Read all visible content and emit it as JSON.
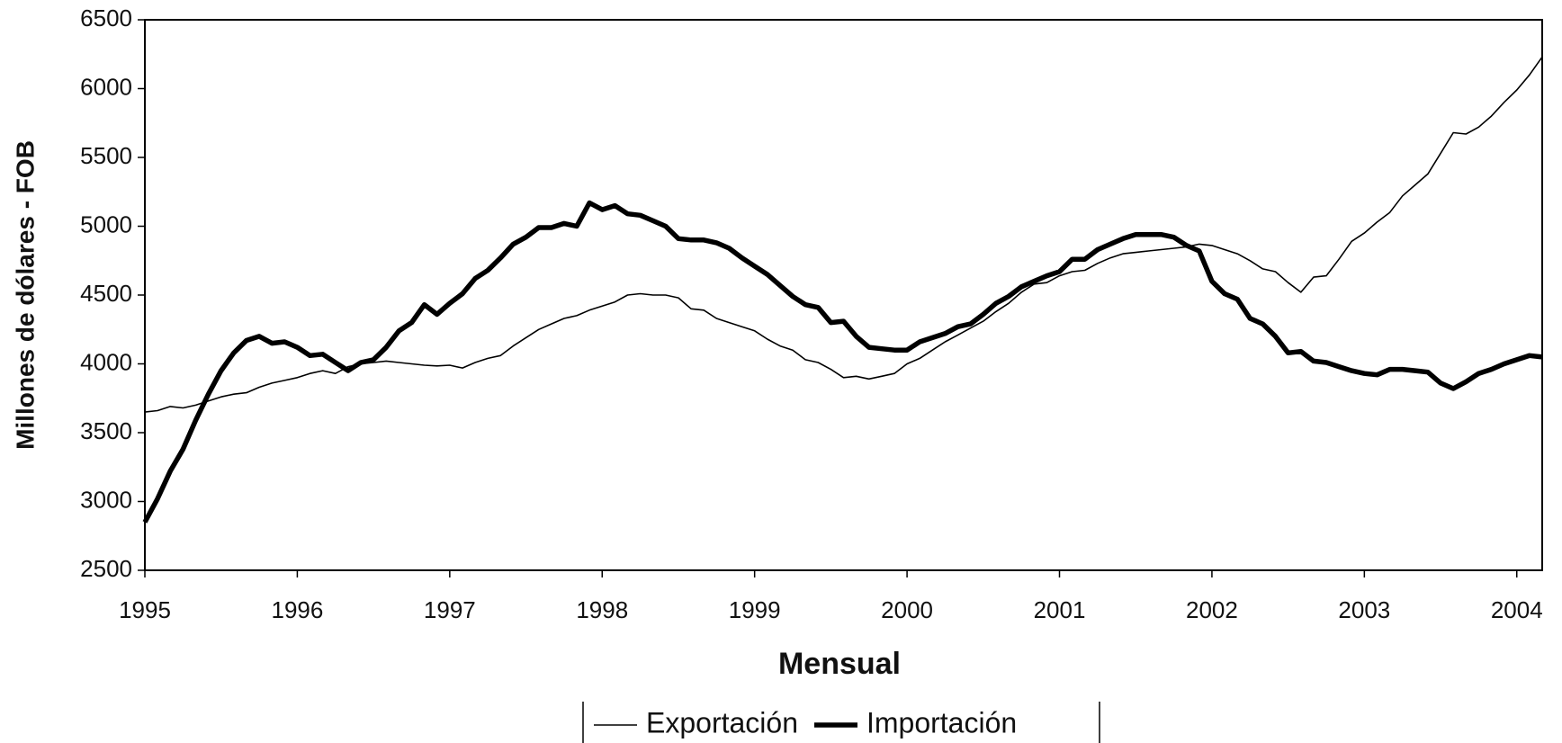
{
  "chart_data": {
    "type": "line",
    "x_label": "Mensual",
    "y_label": "Millones de dólares - FOB",
    "categories": [
      "1995",
      null,
      null,
      null,
      null,
      null,
      null,
      null,
      null,
      null,
      null,
      null,
      "1996",
      null,
      null,
      null,
      null,
      null,
      null,
      null,
      null,
      null,
      null,
      null,
      "1997",
      null,
      null,
      null,
      null,
      null,
      null,
      null,
      null,
      null,
      null,
      null,
      "1998",
      null,
      null,
      null,
      null,
      null,
      null,
      null,
      null,
      null,
      null,
      null,
      "1999",
      null,
      null,
      null,
      null,
      null,
      null,
      null,
      null,
      null,
      null,
      null,
      "2000",
      null,
      null,
      null,
      null,
      null,
      null,
      null,
      null,
      null,
      null,
      null,
      "2001",
      null,
      null,
      null,
      null,
      null,
      null,
      null,
      null,
      null,
      null,
      null,
      "2002",
      null,
      null,
      null,
      null,
      null,
      null,
      null,
      null,
      null,
      null,
      null,
      "2003",
      null,
      null,
      null,
      null,
      null,
      null,
      null,
      null,
      null,
      null,
      null,
      "2004",
      null,
      null
    ],
    "ylim": [
      2500,
      6500
    ],
    "yticks": [
      2500,
      3000,
      3500,
      4000,
      4500,
      5000,
      5500,
      6000,
      6500
    ],
    "series": [
      {
        "name": "Exportación",
        "color": "#000000",
        "width": 1.6,
        "values": [
          3650,
          3660,
          3690,
          3680,
          3700,
          3730,
          3760,
          3780,
          3790,
          3830,
          3860,
          3880,
          3900,
          3930,
          3950,
          3930,
          3980,
          4000,
          4010,
          4020,
          4010,
          4000,
          3990,
          3985,
          3990,
          3970,
          4010,
          4040,
          4060,
          4130,
          4190,
          4250,
          4290,
          4330,
          4350,
          4390,
          4420,
          4450,
          4500,
          4510,
          4500,
          4500,
          4480,
          4400,
          4390,
          4330,
          4300,
          4270,
          4240,
          4180,
          4130,
          4100,
          4030,
          4010,
          3960,
          3900,
          3910,
          3890,
          3910,
          3930,
          4000,
          4040,
          4100,
          4160,
          4210,
          4260,
          4310,
          4380,
          4440,
          4520,
          4580,
          4590,
          4640,
          4670,
          4680,
          4730,
          4770,
          4800,
          4810,
          4820,
          4830,
          4840,
          4850,
          4870,
          4860,
          4830,
          4800,
          4750,
          4690,
          4670,
          4590,
          4520,
          4630,
          4640,
          4760,
          4890,
          4950,
          5030,
          5100,
          5220,
          5300,
          5380,
          5530,
          5680,
          5670,
          5720,
          5800,
          5900,
          5990,
          6100,
          6230
        ]
      },
      {
        "name": "Importación",
        "color": "#000000",
        "width": 5.5,
        "values": [
          2850,
          3020,
          3220,
          3380,
          3590,
          3780,
          3950,
          4080,
          4170,
          4200,
          4150,
          4160,
          4120,
          4060,
          4070,
          4010,
          3950,
          4010,
          4030,
          4120,
          4240,
          4300,
          4430,
          4360,
          4440,
          4510,
          4620,
          4680,
          4770,
          4870,
          4920,
          4990,
          4990,
          5020,
          5000,
          5170,
          5120,
          5150,
          5090,
          5080,
          5040,
          5000,
          4910,
          4900,
          4900,
          4880,
          4840,
          4770,
          4710,
          4650,
          4570,
          4490,
          4430,
          4410,
          4300,
          4310,
          4200,
          4120,
          4110,
          4100,
          4100,
          4160,
          4190,
          4220,
          4270,
          4290,
          4360,
          4440,
          4490,
          4560,
          4600,
          4640,
          4670,
          4760,
          4760,
          4830,
          4870,
          4910,
          4940,
          4940,
          4940,
          4920,
          4860,
          4820,
          4600,
          4510,
          4470,
          4330,
          4290,
          4200,
          4080,
          4090,
          4020,
          4010,
          3980,
          3950,
          3930,
          3920,
          3960,
          3960,
          3950,
          3940,
          3860,
          3820,
          3870,
          3930,
          3960,
          4000,
          4030,
          4060,
          4050
        ]
      }
    ]
  }
}
